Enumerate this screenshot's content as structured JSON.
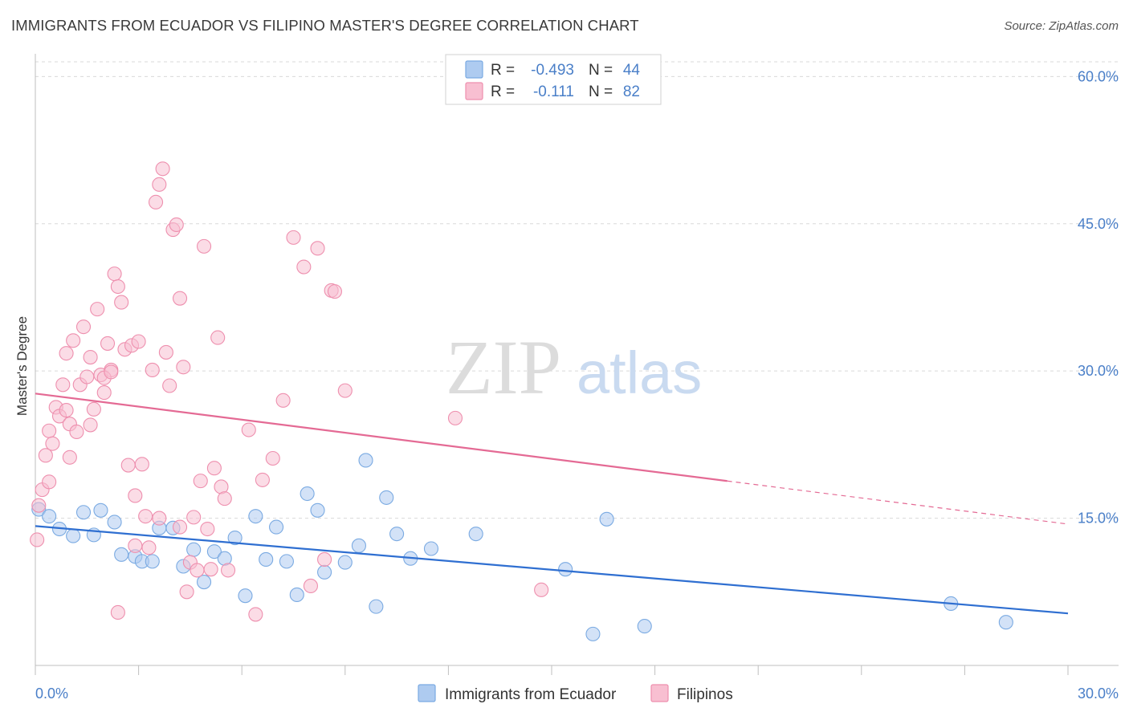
{
  "header": {
    "title": "IMMIGRANTS FROM ECUADOR VS FILIPINO MASTER'S DEGREE CORRELATION CHART",
    "source": "Source: ZipAtlas.com"
  },
  "watermark": {
    "zip": "ZIP",
    "atlas": "atlas"
  },
  "legend_top": [
    {
      "r_label": "R =",
      "r_value": "-0.493",
      "n_label": "N =",
      "n_value": "44"
    },
    {
      "r_label": "R =",
      "r_value": "-0.111",
      "n_label": "N =",
      "n_value": "82"
    }
  ],
  "legend_bottom": [
    {
      "label": "Immigrants from Ecuador"
    },
    {
      "label": "Filipinos"
    }
  ],
  "colors": {
    "ecuador_fill": "#aecbf0",
    "ecuador_stroke": "#7aaae2",
    "ecuador_line": "#2f6fd1",
    "filipino_fill": "#f8bfd1",
    "filipino_stroke": "#ee8fae",
    "filipino_line": "#e46a94",
    "tick_text": "#4a7fc8",
    "grid": "#d9d9d9"
  },
  "chart_data": {
    "type": "scatter",
    "title": "IMMIGRANTS FROM ECUADOR VS FILIPINO MASTER'S DEGREE CORRELATION CHART",
    "xlabel": "",
    "ylabel": "Master's Degree",
    "xlim": [
      0,
      30
    ],
    "ylim": [
      0,
      61.5
    ],
    "x_tick_labels": [
      "0.0%",
      "30.0%"
    ],
    "x_tick_values": [
      0,
      30
    ],
    "y_tick_labels": [
      "15.0%",
      "30.0%",
      "45.0%",
      "60.0%"
    ],
    "y_tick_values": [
      15,
      30,
      45,
      60
    ],
    "grid": true,
    "legend_position": "top-center",
    "series": [
      {
        "name": "Immigrants from Ecuador",
        "r": -0.493,
        "n": 44,
        "trend": {
          "x": [
            0,
            30
          ],
          "y": [
            14.2,
            5.3
          ],
          "solid_to_x": 30
        },
        "points": [
          [
            0.1,
            15.9
          ],
          [
            0.4,
            15.2
          ],
          [
            0.7,
            13.9
          ],
          [
            1.1,
            13.2
          ],
          [
            1.4,
            15.6
          ],
          [
            1.7,
            13.3
          ],
          [
            1.9,
            15.8
          ],
          [
            2.3,
            14.6
          ],
          [
            2.5,
            11.3
          ],
          [
            2.9,
            11.1
          ],
          [
            3.1,
            10.6
          ],
          [
            3.4,
            10.6
          ],
          [
            3.6,
            14.0
          ],
          [
            4.0,
            14.0
          ],
          [
            4.3,
            10.1
          ],
          [
            4.6,
            11.8
          ],
          [
            4.9,
            8.5
          ],
          [
            5.2,
            11.6
          ],
          [
            5.5,
            10.9
          ],
          [
            5.8,
            13.0
          ],
          [
            6.1,
            7.1
          ],
          [
            6.4,
            15.2
          ],
          [
            6.7,
            10.8
          ],
          [
            7.0,
            14.1
          ],
          [
            7.3,
            10.6
          ],
          [
            7.6,
            7.2
          ],
          [
            7.9,
            17.5
          ],
          [
            8.2,
            15.8
          ],
          [
            8.4,
            9.5
          ],
          [
            9.0,
            10.5
          ],
          [
            9.4,
            12.2
          ],
          [
            9.6,
            20.9
          ],
          [
            9.9,
            6.0
          ],
          [
            10.2,
            17.1
          ],
          [
            10.5,
            13.4
          ],
          [
            10.9,
            10.9
          ],
          [
            11.5,
            11.9
          ],
          [
            12.8,
            13.4
          ],
          [
            15.4,
            9.8
          ],
          [
            16.2,
            3.2
          ],
          [
            16.6,
            14.9
          ],
          [
            17.7,
            4.0
          ],
          [
            26.6,
            6.3
          ],
          [
            28.2,
            4.4
          ]
        ]
      },
      {
        "name": "Filipinos",
        "r": -0.111,
        "n": 82,
        "trend": {
          "x": [
            0,
            30
          ],
          "y": [
            27.7,
            14.4
          ],
          "solid_to_x": 20.1
        },
        "points": [
          [
            0.05,
            12.8
          ],
          [
            0.1,
            16.3
          ],
          [
            0.2,
            17.9
          ],
          [
            0.3,
            21.4
          ],
          [
            0.4,
            23.9
          ],
          [
            0.5,
            22.6
          ],
          [
            0.6,
            26.3
          ],
          [
            0.7,
            25.4
          ],
          [
            0.8,
            28.6
          ],
          [
            0.9,
            31.8
          ],
          [
            1.0,
            24.6
          ],
          [
            1.1,
            33.1
          ],
          [
            1.2,
            23.8
          ],
          [
            1.3,
            28.6
          ],
          [
            1.4,
            34.5
          ],
          [
            1.5,
            29.4
          ],
          [
            1.6,
            31.4
          ],
          [
            1.7,
            26.1
          ],
          [
            1.8,
            36.3
          ],
          [
            1.9,
            29.6
          ],
          [
            2.0,
            27.8
          ],
          [
            2.1,
            32.8
          ],
          [
            2.2,
            30.1
          ],
          [
            2.3,
            39.9
          ],
          [
            2.4,
            38.6
          ],
          [
            2.5,
            37.0
          ],
          [
            2.6,
            32.2
          ],
          [
            2.7,
            20.4
          ],
          [
            2.8,
            32.6
          ],
          [
            2.9,
            17.3
          ],
          [
            3.0,
            33.0
          ],
          [
            3.1,
            20.5
          ],
          [
            3.2,
            15.2
          ],
          [
            3.3,
            12.0
          ],
          [
            3.4,
            30.1
          ],
          [
            3.5,
            47.2
          ],
          [
            3.6,
            49.0
          ],
          [
            3.7,
            50.6
          ],
          [
            3.8,
            31.9
          ],
          [
            3.9,
            28.5
          ],
          [
            4.0,
            44.4
          ],
          [
            4.1,
            44.9
          ],
          [
            4.2,
            37.4
          ],
          [
            4.3,
            30.4
          ],
          [
            4.4,
            7.5
          ],
          [
            4.5,
            10.5
          ],
          [
            4.6,
            15.1
          ],
          [
            4.7,
            9.7
          ],
          [
            4.8,
            18.8
          ],
          [
            4.9,
            42.7
          ],
          [
            5.0,
            13.9
          ],
          [
            5.1,
            9.8
          ],
          [
            5.2,
            20.1
          ],
          [
            5.3,
            33.4
          ],
          [
            5.4,
            18.2
          ],
          [
            5.5,
            17.0
          ],
          [
            5.6,
            9.7
          ],
          [
            6.2,
            24.0
          ],
          [
            6.4,
            5.2
          ],
          [
            6.6,
            18.9
          ],
          [
            6.9,
            21.1
          ],
          [
            7.2,
            27.0
          ],
          [
            7.5,
            43.6
          ],
          [
            7.8,
            40.6
          ],
          [
            8.0,
            8.1
          ],
          [
            8.2,
            42.5
          ],
          [
            8.4,
            10.8
          ],
          [
            8.6,
            38.2
          ],
          [
            8.7,
            38.1
          ],
          [
            9.0,
            28.0
          ],
          [
            2.4,
            5.4
          ],
          [
            1.0,
            21.2
          ],
          [
            0.4,
            18.7
          ],
          [
            1.6,
            24.5
          ],
          [
            0.9,
            26.0
          ],
          [
            2.0,
            29.3
          ],
          [
            2.2,
            29.9
          ],
          [
            2.9,
            12.2
          ],
          [
            12.2,
            25.2
          ],
          [
            14.7,
            7.7
          ],
          [
            3.6,
            15.0
          ],
          [
            4.2,
            14.1
          ]
        ]
      }
    ]
  }
}
